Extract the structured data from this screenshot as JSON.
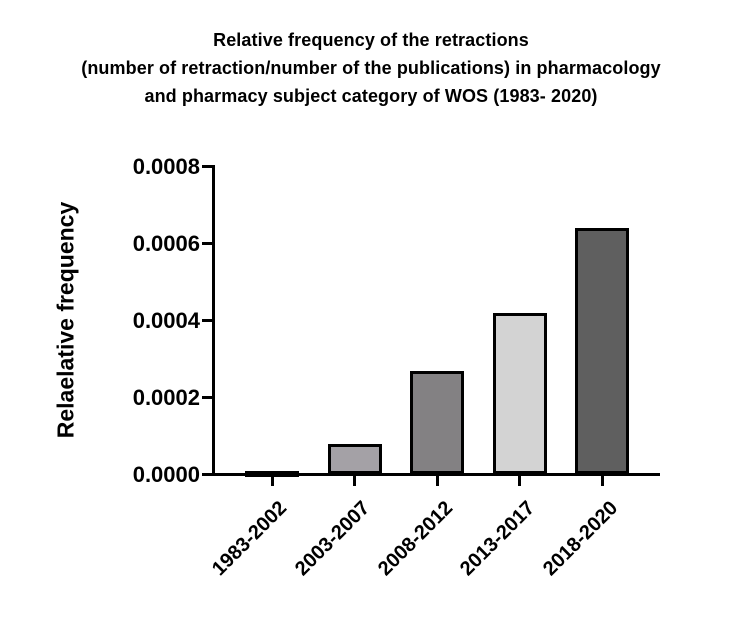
{
  "figure": {
    "title_lines": [
      "Relative frequency of the retractions",
      "(number of retraction/number of the publications) in pharmacology",
      "and pharmacy subject category of WOS (1983- 2020)"
    ]
  },
  "chart_data": {
    "type": "bar",
    "title": "Relative frequency of the retractions (number of retraction/number of the publications) in pharmacology and pharmacy subject category of WOS (1983- 2020)",
    "categories": [
      "1983-2002",
      "2003-2007",
      "2008-2012",
      "2013-2017",
      "2018-2020"
    ],
    "values": [
      8e-06,
      8e-05,
      0.00027,
      0.00042,
      0.00064
    ],
    "bar_colors": [
      "#111111",
      "#a4a1a6",
      "#838183",
      "#d3d3d3",
      "#5f5f5f"
    ],
    "bar_border_color": "#000000",
    "xlabel": "",
    "ylabel": "Relaelative frequency",
    "ylim": [
      0,
      0.0008
    ],
    "yticks": [
      0,
      0.0002,
      0.0004,
      0.0006,
      0.0008
    ],
    "ytick_labels": [
      "0.0000",
      "0.0002",
      "0.0004",
      "0.0006",
      "0.0008"
    ],
    "grid": false,
    "legend": "none",
    "axis_color": "#000000",
    "background_color": "#ffffff"
  }
}
